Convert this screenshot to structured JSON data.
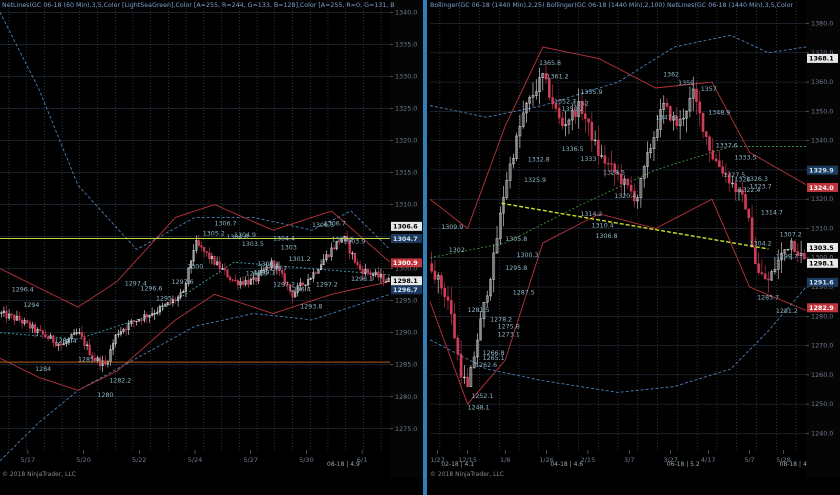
{
  "colors": {
    "background": "#000000",
    "left_axis_bg": "#0a0a0a",
    "divider": "#2f7fb8",
    "grid": "#2c3d52",
    "vgrid_dotted": "#5b6575",
    "axis_text": "#6f7b8c",
    "header_text": "#7f9fd0",
    "up_candle": "#e8e8e8",
    "down_candle": "#d23c57",
    "bb_blue": "#4a7fb4",
    "bb_red": "#b8343c",
    "bb_green": "#3f8f3f",
    "price_label": "#8fb7c7",
    "trendline": "#c8e02a",
    "yellow_line": "#bfd63a",
    "orange_line": "#b45c20",
    "teal_line": "#3ea3a8"
  },
  "chart_data": [
    {
      "panel": "left",
      "type": "candlestick",
      "header": "NetLines(GC 06-18 (60 Min),3,5,Color [LightSeaGreen],Color [A=255, R=244, G=133, B=128],Color [A=255, R=0, G=131, B",
      "yaxis": {
        "ylim": [
          1272,
          1341
        ],
        "ticks": [
          1275,
          1280,
          1285,
          1290,
          1295,
          1300,
          1305,
          1310,
          1315,
          1320,
          1325,
          1330,
          1335,
          1340
        ],
        "tick_labels": [
          "1275.0",
          "1280.0",
          "1285.0",
          "1290.0",
          "1295.0",
          "1300.0",
          "1305.0",
          "1310.0",
          "1315.0",
          "1320.0",
          "1325.0",
          "1330.0",
          "1335.0",
          "1340.0"
        ]
      },
      "xaxis_labels": [
        "5/17",
        "5/20",
        "5/22",
        "5/24",
        "5/27",
        "5/30",
        "6/1"
      ],
      "axis_badges": [
        {
          "text": "1306.6",
          "value": 1306.6,
          "bg": "#e8e8e8",
          "fg": "#000"
        },
        {
          "text": "1304.7",
          "value": 1304.7,
          "bg": "#1c3b5e",
          "fg": "#cfe0f0"
        },
        {
          "text": "1300.9",
          "value": 1300.9,
          "bg": "#c0343c",
          "fg": "#fff"
        },
        {
          "text": "1298.1",
          "value": 1298.1,
          "bg": "#e8e8e8",
          "fg": "#000"
        },
        {
          "text": "1296.7",
          "value": 1296.7,
          "bg": "#1c3b5e",
          "fg": "#cfe0f0"
        }
      ],
      "horizontal_lines": [
        {
          "value": 1304.7,
          "color": "#bfd63a"
        },
        {
          "value": 1285.4,
          "color": "#b45c20"
        }
      ],
      "price_labels": [
        "1296.4",
        "1294",
        "1284",
        "1288.4",
        "1285.5",
        "1280",
        "1282.2",
        "1297.4",
        "1296.6",
        "1295",
        "1297.6",
        "1300",
        "1305.2",
        "1306.7",
        "1304.6",
        "1304.9",
        "1303.5",
        "1299.1",
        "1299.7",
        "1304.4",
        "1303",
        "1301.2",
        "1306.5",
        "1306.7",
        "1304.2",
        "1303.9",
        "1298.1",
        "1298.9",
        "1300.4",
        "1297.2",
        "1296.4",
        "1293.8",
        "1297.2"
      ],
      "watermark": "© 2018 NinjaTrader, LLC",
      "contract_label": "08-18 | 4.9"
    },
    {
      "panel": "right",
      "type": "candlestick",
      "header": "Bollinger(GC 06-18 (1440 Min),2,25)  Bollinger(GC 06-18 (1440 Min),2,100)  NetLines(GC 06-18 (1440 Min),3,5,Color",
      "yaxis": {
        "ylim": [
          1235,
          1386
        ],
        "ticks": [
          1240,
          1250,
          1260,
          1270,
          1280,
          1290,
          1300,
          1310,
          1320,
          1330,
          1340,
          1350,
          1360,
          1370,
          1380
        ],
        "tick_labels": [
          "1240.0",
          "1250.0",
          "1260.0",
          "1270.0",
          "1280.0",
          "1290.0",
          "1300.0",
          "1310.0",
          "1320.0",
          "1330.0",
          "1340.0",
          "1350.0",
          "1360.0",
          "1370.0",
          "1380.0"
        ]
      },
      "xaxis_labels": [
        "1/27",
        "12/15",
        "1/8",
        "1/26",
        "2/15",
        "3/7",
        "3/27",
        "4/17",
        "5/7",
        "5/28"
      ],
      "axis_badges": [
        {
          "text": "1368.1",
          "value": 1368.1,
          "bg": "#e8e8e8",
          "fg": "#000"
        },
        {
          "text": "1329.9",
          "value": 1329.9,
          "bg": "#1c3b5e",
          "fg": "#cfe0f0"
        },
        {
          "text": "1324.0",
          "value": 1324.0,
          "bg": "#c0343c",
          "fg": "#fff"
        },
        {
          "text": "1303.5",
          "value": 1303.5,
          "bg": "#e8e8e8",
          "fg": "#000"
        },
        {
          "text": "1298.1",
          "value": 1298.1,
          "bg": "#e8e8e8",
          "fg": "#000"
        },
        {
          "text": "1291.6",
          "value": 1291.6,
          "bg": "#1c3b5e",
          "fg": "#cfe0f0"
        },
        {
          "text": "1282.9",
          "value": 1282.9,
          "bg": "#c0343c",
          "fg": "#fff"
        }
      ],
      "trendline": {
        "x_start": 0.19,
        "x_end": 0.9,
        "y_start": 1318.6,
        "y_end": 1303.0,
        "color": "#c8e02a"
      },
      "price_labels": [
        "1309.9",
        "1302",
        "1281.5",
        "1252.1",
        "1248.1",
        "1278.2",
        "1275.8",
        "1266.8",
        "1273.1",
        "1265.1",
        "1262.6",
        "1305.8",
        "1295.8",
        "1287.5",
        "1300.3",
        "1325.9",
        "1332.8",
        "1314.2",
        "1310.4",
        "1306.8",
        "1365.8",
        "1361.2",
        "1352.7",
        "1352",
        "1355.9",
        "1350.2",
        "1336.5",
        "1333",
        "1328.5",
        "1320.4",
        "1347.2",
        "1362",
        "1359",
        "1357",
        "1348.9",
        "1327.5",
        "1326",
        "1337.6",
        "1333.5",
        "1323.7",
        "1326.3",
        "1322.4",
        "1314.7",
        "1304.2",
        "1307.2",
        "1299.7",
        "1285.7",
        "1281.2"
      ],
      "watermark": "© 2018 NinjaTrader, LLC",
      "contract_labels": [
        "02-18 | 4.1",
        "04-18 | 4.6",
        "06-18 | 5.2",
        "08-18 | 4"
      ]
    }
  ]
}
